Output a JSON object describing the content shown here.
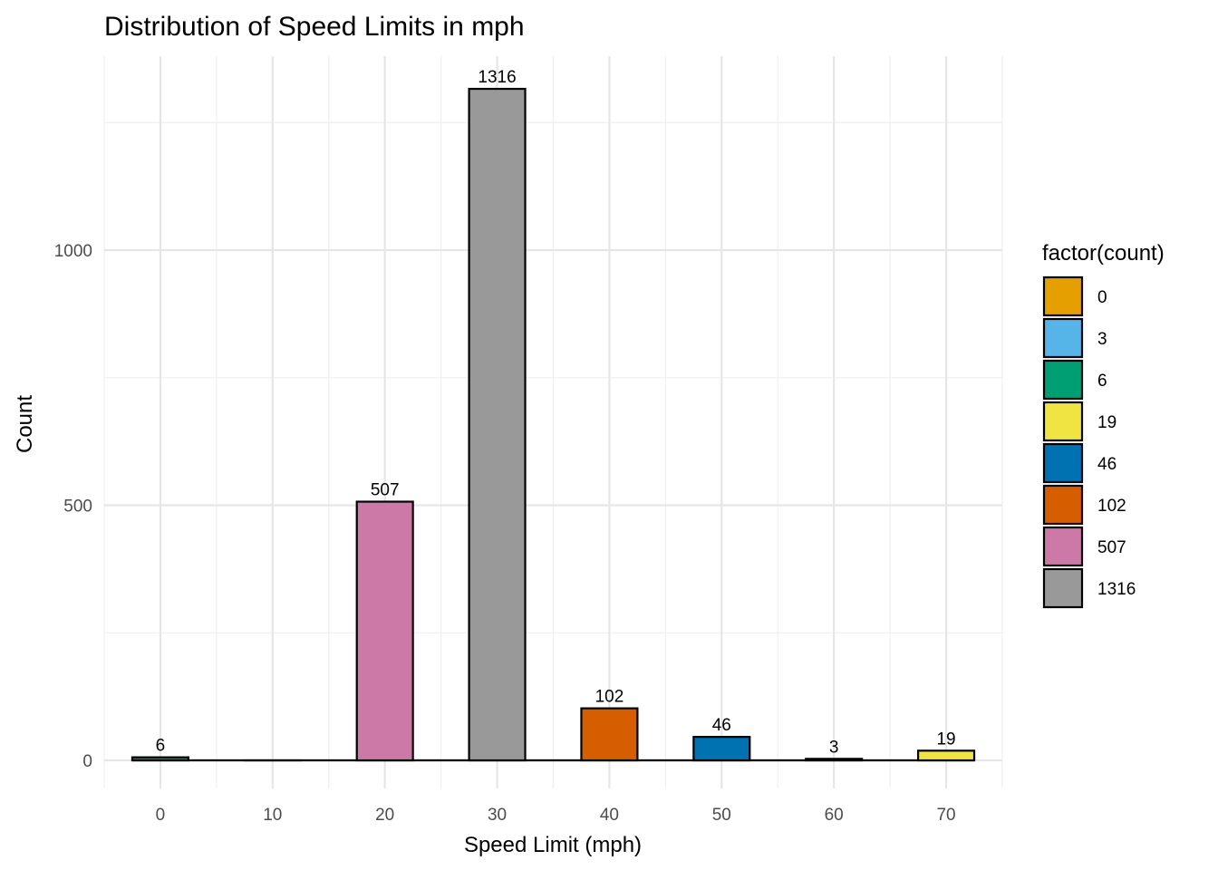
{
  "chart_data": {
    "type": "bar",
    "title": "Distribution of Speed Limits in mph",
    "xlabel": "Speed Limit (mph)",
    "ylabel": "Count",
    "x": [
      0,
      10,
      20,
      30,
      40,
      50,
      60,
      70
    ],
    "values": [
      6,
      0,
      507,
      1316,
      102,
      46,
      3,
      19
    ],
    "data_labels": [
      "6",
      "",
      "507",
      "1316",
      "102",
      "46",
      "3",
      "19"
    ],
    "xticks": [
      0,
      10,
      20,
      30,
      40,
      50,
      60,
      70
    ],
    "yticks": [
      0,
      500,
      1000
    ],
    "xlim": [
      -5,
      75
    ],
    "ylim": [
      -55,
      1380
    ],
    "grid": true,
    "legend": {
      "title": "factor(count)",
      "position": "right",
      "entries": [
        {
          "label": "0",
          "color": "#E69F00"
        },
        {
          "label": "3",
          "color": "#56B4E9"
        },
        {
          "label": "6",
          "color": "#009E73"
        },
        {
          "label": "19",
          "color": "#F0E442"
        },
        {
          "label": "46",
          "color": "#0072B2"
        },
        {
          "label": "102",
          "color": "#D55E00"
        },
        {
          "label": "507",
          "color": "#CC79A7"
        },
        {
          "label": "1316",
          "color": "#999999"
        }
      ]
    }
  }
}
